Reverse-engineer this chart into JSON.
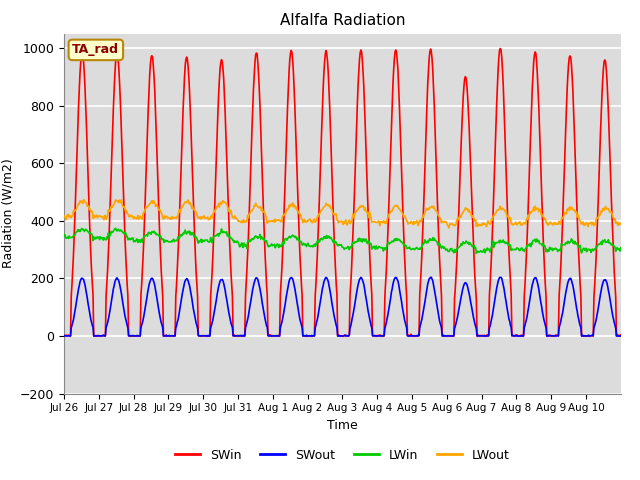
{
  "title": "Alfalfa Radiation",
  "xlabel": "Time",
  "ylabel": "Radiation (W/m2)",
  "annotation": "TA_rad",
  "ylim": [
    -200,
    1050
  ],
  "yticks": [
    -200,
    0,
    200,
    400,
    600,
    800,
    1000
  ],
  "plot_bg": "#dcdcdc",
  "grid_color": "#ffffff",
  "series": {
    "SWin": {
      "color": "#ff0000",
      "lw": 1.2
    },
    "SWout": {
      "color": "#0000ff",
      "lw": 1.2
    },
    "LWin": {
      "color": "#00cc00",
      "lw": 1.2
    },
    "LWout": {
      "color": "#ffa500",
      "lw": 1.2
    }
  },
  "n_days": 16,
  "xtick_labels": [
    "Jul 26",
    "Jul 27",
    "Jul 28",
    "Jul 29",
    "Jul 30",
    "Jul 31",
    "Aug 1",
    "Aug 2",
    "Aug 3",
    "Aug 4",
    "Aug 5",
    "Aug 6",
    "Aug 7",
    "Aug 8",
    "Aug 9",
    "Aug 10"
  ],
  "legend_entries": [
    "SWin",
    "SWout",
    "LWin",
    "LWout"
  ],
  "legend_colors": [
    "#ff0000",
    "#0000ff",
    "#00cc00",
    "#ffa500"
  ]
}
